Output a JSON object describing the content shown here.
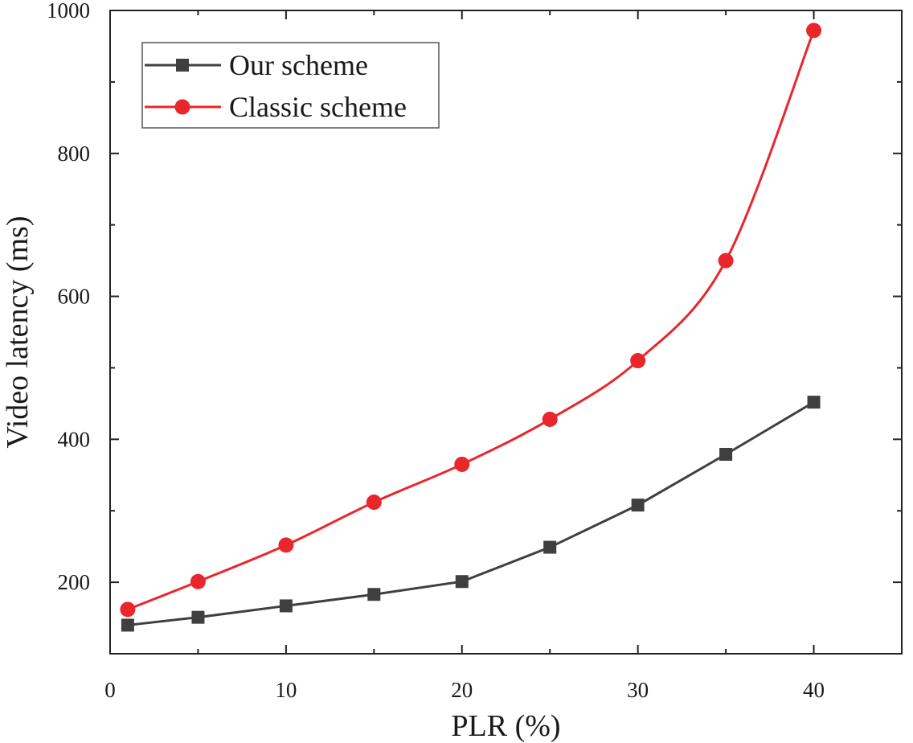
{
  "chart_data": {
    "type": "line",
    "title": "",
    "xlabel": "PLR (%)",
    "ylabel": "Video latency (ms)",
    "xlim": [
      0,
      45
    ],
    "ylim": [
      100,
      1000
    ],
    "xticks": [
      0,
      10,
      20,
      30,
      40
    ],
    "yticks": [
      200,
      400,
      600,
      800,
      1000
    ],
    "grid": false,
    "legend_position": "top-left",
    "x": [
      1,
      5,
      10,
      15,
      20,
      25,
      30,
      35,
      40
    ],
    "series": [
      {
        "name": "Our scheme",
        "marker": "square",
        "color": "#3f3f3f",
        "smooth": false,
        "values": [
          140,
          151,
          167,
          183,
          201,
          249,
          308,
          379,
          452
        ]
      },
      {
        "name": "Classic scheme",
        "marker": "circle",
        "color": "#e8262b",
        "smooth": true,
        "values": [
          162,
          201,
          252,
          312,
          365,
          428,
          510,
          650,
          972
        ]
      }
    ]
  }
}
